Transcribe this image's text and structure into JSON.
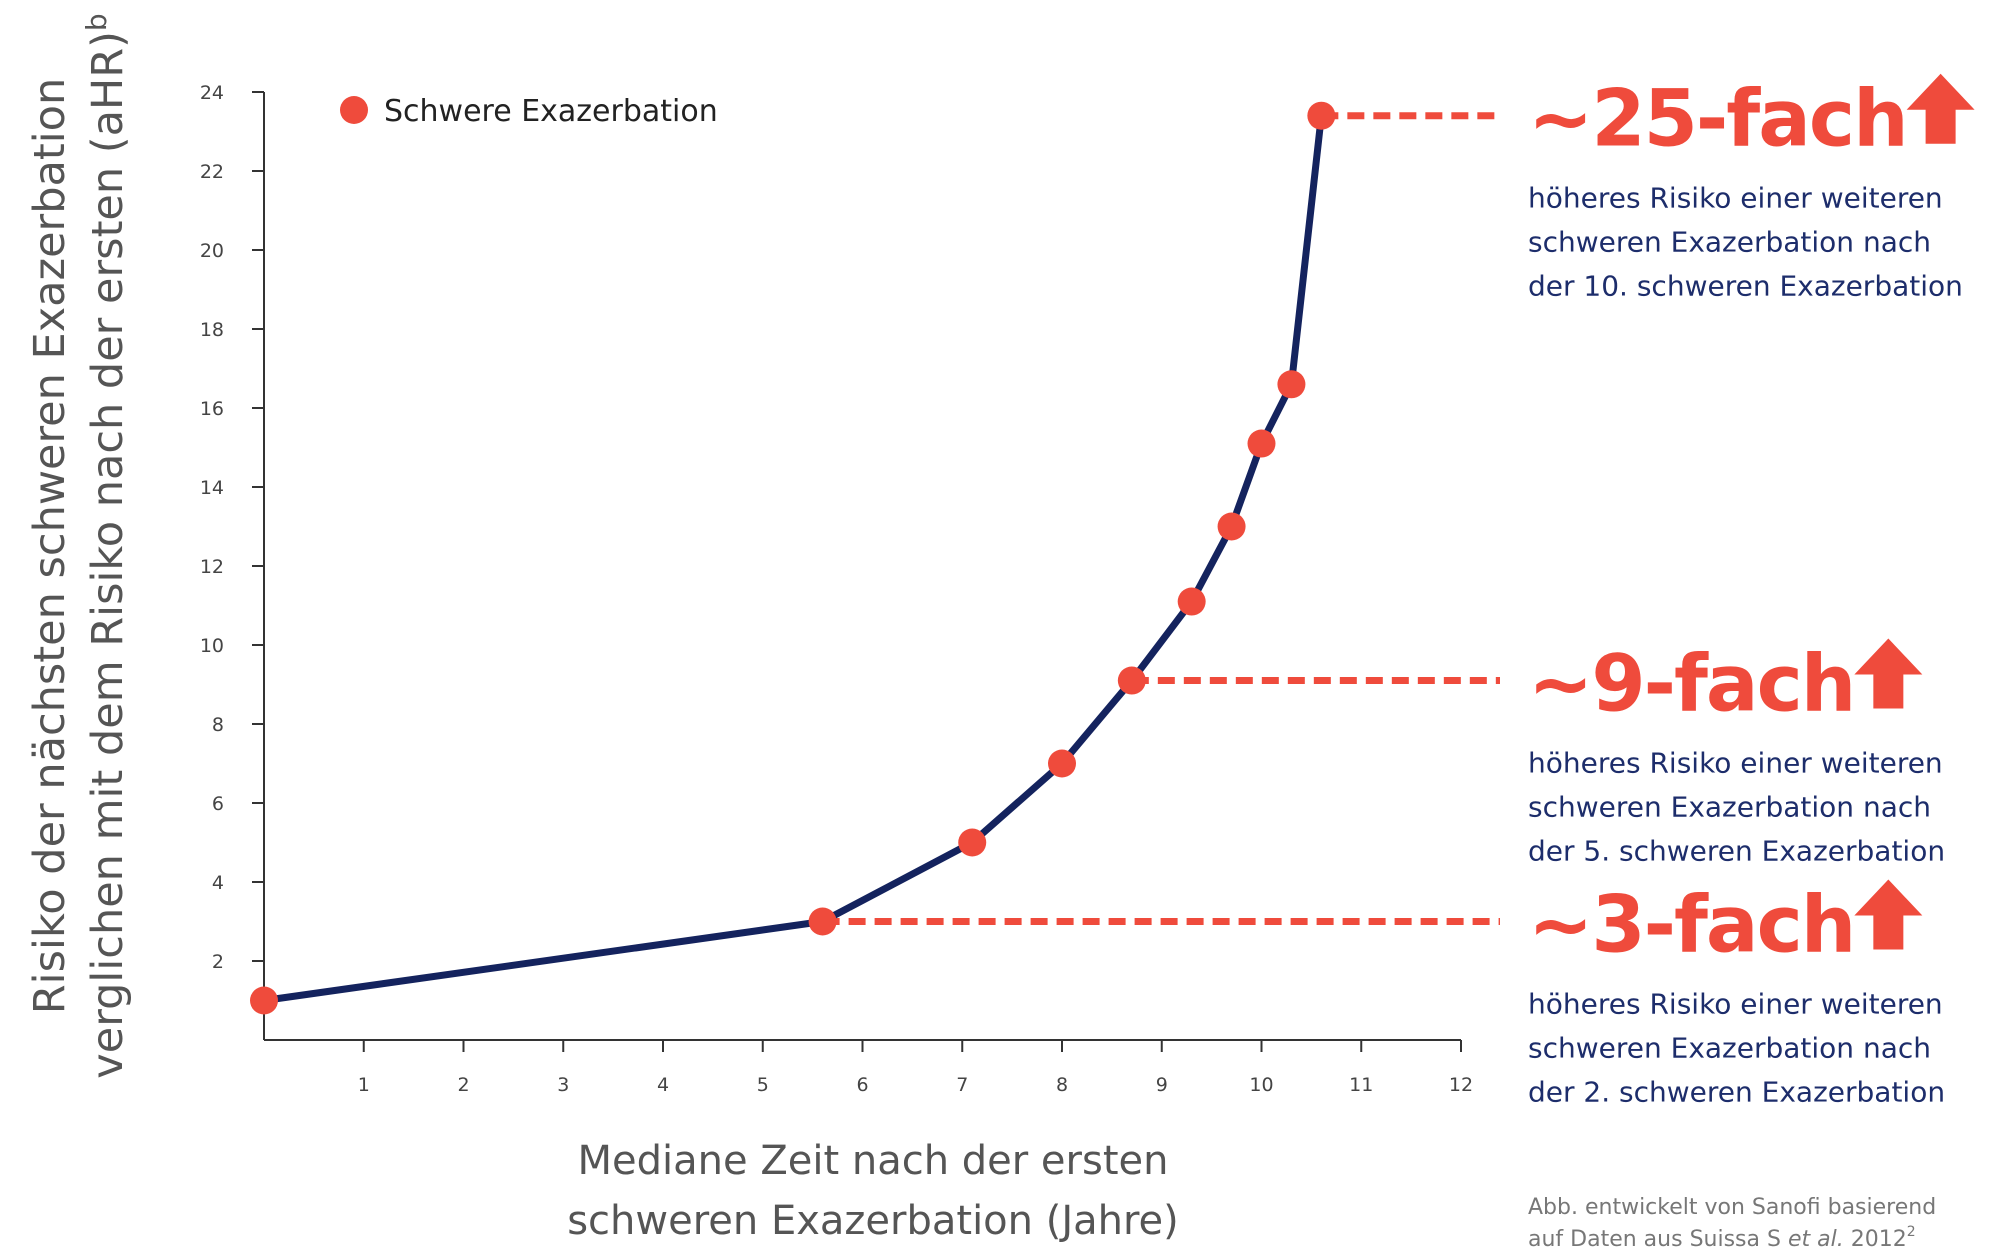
{
  "chart_data": {
    "type": "line",
    "xlabel": [
      "Mediane Zeit nach der ersten",
      "schweren Exazerbation (Jahre)"
    ],
    "ylabel": [
      "Risiko der nächsten schweren Exazerbation",
      "verglichen mit dem Risiko nach der ersten (aHR)"
    ],
    "ylabel_superscript": "b",
    "xlim": [
      0,
      12
    ],
    "ylim": [
      0,
      24
    ],
    "x_ticks": [
      "1",
      "2",
      "3",
      "4",
      "5",
      "6",
      "7",
      "8",
      "9",
      "10",
      "11",
      "12"
    ],
    "y_ticks": [
      "2",
      "4",
      "6",
      "8",
      "10",
      "12",
      "14",
      "16",
      "18",
      "20",
      "22",
      "24"
    ],
    "grid": false,
    "legend_position": "top-left",
    "series": [
      {
        "name": "Schwere Exazerbation",
        "x": [
          0,
          5.6,
          7.1,
          8.0,
          8.7,
          9.3,
          9.7,
          10.0,
          10.3,
          10.6
        ],
        "y": [
          1.0,
          3.0,
          5.0,
          7.0,
          9.1,
          11.1,
          13.0,
          15.1,
          16.6,
          23.4
        ]
      }
    ],
    "colors": {
      "line": "#14235e",
      "marker": "#ef4b3c",
      "callout": "#ef4b3c",
      "text": "#1d2d6b"
    },
    "annotations": [
      {
        "from_x": 10.6,
        "y": 23.4,
        "big": "~25-fach",
        "lines": [
          "höheres Risiko einer weiteren",
          "schweren Exazerbation nach",
          "der 10. schweren Exazerbation"
        ]
      },
      {
        "from_x": 8.7,
        "y": 9.1,
        "big": "~9-fach",
        "lines": [
          "höheres Risiko einer weiteren",
          "schweren Exazerbation nach",
          "der 5. schweren Exazerbation"
        ]
      },
      {
        "from_x": 5.6,
        "y": 3.0,
        "big": "~3-fach",
        "lines": [
          "höheres Risiko einer weiteren",
          "schweren Exazerbation nach",
          "der 2. schweren Exazerbation"
        ]
      }
    ]
  },
  "credit": {
    "line1": "Abb. entwickelt von Sanofi basierend",
    "line2_prefix": "auf Daten aus Suissa S ",
    "line2_italic": "et al.",
    "line2_suffix": " 2012",
    "line2_superscript": "2"
  }
}
